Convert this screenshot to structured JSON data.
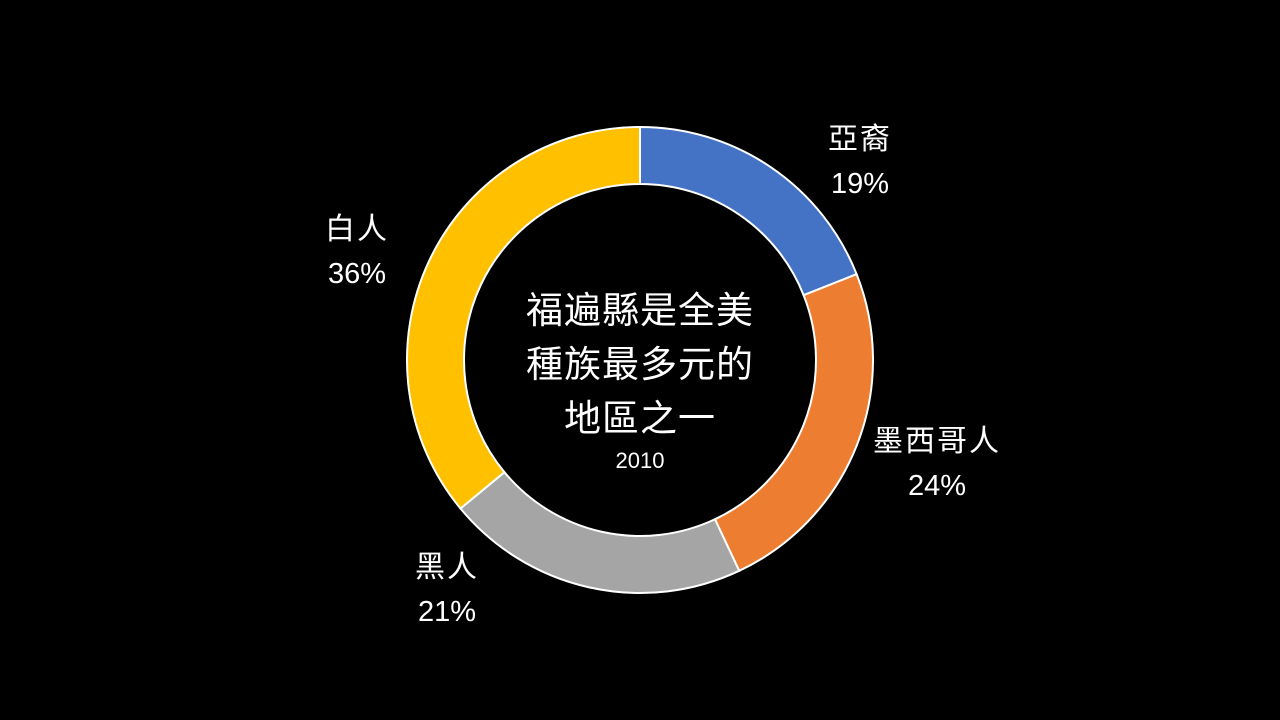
{
  "slide": {
    "center_title": "福遍縣是全美\n種族最多元的\n地區之一",
    "center_year": "2010"
  },
  "chart_data": {
    "type": "pie",
    "donut": true,
    "start_angle_deg": 0,
    "direction": "clockwise",
    "slices": [
      {
        "label": "亞裔",
        "value": 19,
        "display": "19%",
        "color": "#4472C4"
      },
      {
        "label": "墨西哥人",
        "value": 24,
        "display": "24%",
        "color": "#ED7D31"
      },
      {
        "label": "黑人",
        "value": 21,
        "display": "21%",
        "color": "#A5A5A5"
      },
      {
        "label": "白人",
        "value": 36,
        "display": "36%",
        "color": "#FFC000"
      }
    ],
    "legend": "none"
  }
}
